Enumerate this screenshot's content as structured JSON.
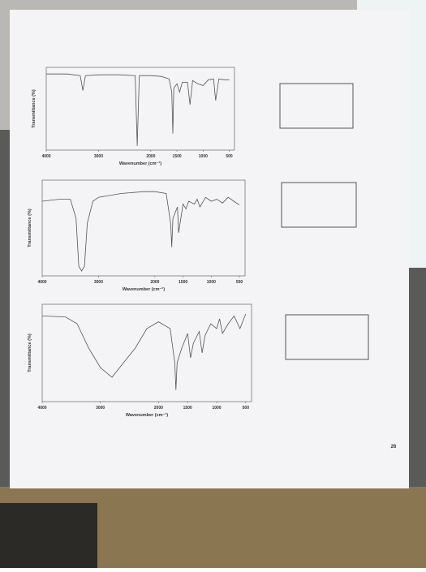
{
  "chart_data": [
    {
      "type": "line",
      "xlabel": "Wavenumber (cm⁻¹)",
      "ylabel": "Transmittance (%)",
      "xlim": [
        4000,
        400
      ],
      "ylim": [
        0,
        100
      ],
      "xticks": [
        4000,
        3000,
        2000,
        1500,
        1000,
        500
      ],
      "color": "#555555",
      "x": [
        4000,
        3600,
        3350,
        3300,
        3250,
        3000,
        2600,
        2300,
        2260,
        2220,
        2000,
        1800,
        1650,
        1600,
        1580,
        1560,
        1500,
        1450,
        1400,
        1300,
        1250,
        1200,
        1100,
        1000,
        900,
        800,
        760,
        700,
        600,
        500
      ],
      "values": [
        92,
        92,
        90,
        72,
        90,
        91,
        91,
        90,
        5,
        90,
        90,
        89,
        86,
        70,
        20,
        75,
        80,
        70,
        82,
        82,
        55,
        84,
        80,
        78,
        85,
        86,
        60,
        86,
        85,
        85
      ]
    },
    {
      "type": "line",
      "xlabel": "Wavenumber (cm⁻¹)",
      "ylabel": "Transmittance (%)",
      "xlim": [
        4000,
        400
      ],
      "ylim": [
        0,
        100
      ],
      "xticks": [
        4000,
        3000,
        2000,
        1500,
        1000,
        500
      ],
      "color": "#555555",
      "x": [
        4000,
        3700,
        3500,
        3400,
        3350,
        3300,
        3250,
        3200,
        3100,
        3000,
        2600,
        2200,
        2000,
        1800,
        1720,
        1700,
        1680,
        1600,
        1580,
        1500,
        1450,
        1400,
        1300,
        1250,
        1200,
        1100,
        1000,
        900,
        800,
        700,
        600,
        500
      ],
      "values": [
        78,
        80,
        80,
        60,
        10,
        5,
        10,
        55,
        78,
        82,
        86,
        88,
        88,
        86,
        55,
        30,
        60,
        72,
        45,
        75,
        70,
        78,
        75,
        80,
        72,
        82,
        78,
        80,
        76,
        82,
        78,
        74
      ]
    },
    {
      "type": "line",
      "xlabel": "Wavenumber (cm⁻¹)",
      "ylabel": "Transmittance (%)",
      "xlim": [
        4000,
        400
      ],
      "ylim": [
        0,
        100
      ],
      "xticks": [
        4000,
        3000,
        2000,
        1500,
        1000,
        500
      ],
      "color": "#555555",
      "x": [
        4000,
        3600,
        3400,
        3200,
        3000,
        2800,
        2600,
        2400,
        2200,
        2000,
        1800,
        1720,
        1700,
        1680,
        1600,
        1500,
        1450,
        1400,
        1300,
        1250,
        1200,
        1100,
        1000,
        950,
        900,
        800,
        700,
        600,
        500
      ],
      "values": [
        88,
        87,
        80,
        55,
        35,
        25,
        40,
        55,
        75,
        82,
        75,
        40,
        12,
        40,
        55,
        70,
        45,
        60,
        72,
        50,
        68,
        80,
        75,
        85,
        70,
        80,
        88,
        75,
        90
      ]
    }
  ],
  "page_number": "26"
}
